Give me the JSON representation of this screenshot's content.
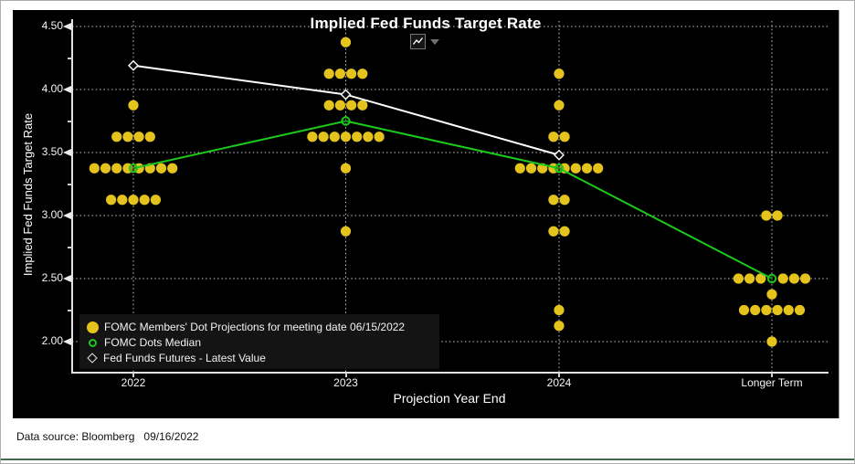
{
  "header": {
    "title": "Implied Fed Funds Target Rate"
  },
  "toolbar": {
    "icon": "line-chart-icon",
    "dropdown": "caret-down-icon"
  },
  "axes": {
    "y_label": "Implied Fed Funds Target Rate",
    "x_label": "Projection Year End",
    "y_ticks": [
      "4.50",
      "4.00",
      "3.50",
      "3.00",
      "2.50",
      "2.00"
    ],
    "y_minor_ticks": [
      4.25,
      3.75,
      3.25,
      2.75,
      2.25
    ],
    "x_ticks": [
      "2022",
      "2023",
      "2024",
      "Longer Term"
    ]
  },
  "legend": {
    "items": [
      {
        "marker": "yellow-dot",
        "label": "FOMC Members' Dot Projections for meeting date 06/15/2022"
      },
      {
        "marker": "green-ring",
        "label": "FOMC Dots Median"
      },
      {
        "marker": "white-diamond",
        "label": "Fed Funds Futures - Latest Value"
      }
    ]
  },
  "footer": {
    "text": "Data source: Bloomberg   09/16/2022"
  },
  "colors": {
    "background": "#000000",
    "dot": "#e4c31d",
    "median": "#1dc81d",
    "futures": "#ffffff",
    "grid": "#c8c8c8",
    "axis": "#e2e2e2",
    "bottom_rule": "#44684b"
  },
  "chart_data": {
    "type": "scatter",
    "title": "Implied Fed Funds Target Rate",
    "xlabel": "Projection Year End",
    "ylabel": "Implied Fed Funds Target Rate",
    "categories": [
      "2022",
      "2023",
      "2024",
      "Longer Term"
    ],
    "ylim": [
      1.75,
      4.55
    ],
    "y_gridlines": [
      4.5,
      4.0,
      3.5,
      3.0,
      2.5,
      2.0
    ],
    "grid": "dotted",
    "legend_position": "bottom-left",
    "dot_columns": [
      {
        "category": "2022",
        "rows": [
          {
            "value": 3.875,
            "count": 1
          },
          {
            "value": 3.625,
            "count": 4
          },
          {
            "value": 3.375,
            "count": 8
          },
          {
            "value": 3.125,
            "count": 5
          }
        ]
      },
      {
        "category": "2023",
        "rows": [
          {
            "value": 4.375,
            "count": 1
          },
          {
            "value": 4.125,
            "count": 4
          },
          {
            "value": 3.875,
            "count": 4
          },
          {
            "value": 3.625,
            "count": 7
          },
          {
            "value": 3.375,
            "count": 1
          },
          {
            "value": 2.875,
            "count": 1
          }
        ]
      },
      {
        "category": "2024",
        "rows": [
          {
            "value": 4.125,
            "count": 1
          },
          {
            "value": 3.875,
            "count": 1
          },
          {
            "value": 3.625,
            "count": 2
          },
          {
            "value": 3.375,
            "count": 8
          },
          {
            "value": 3.125,
            "count": 2
          },
          {
            "value": 2.875,
            "count": 2
          },
          {
            "value": 2.25,
            "count": 1
          },
          {
            "value": 2.125,
            "count": 1
          }
        ]
      },
      {
        "category": "Longer Term",
        "rows": [
          {
            "value": 3.0,
            "count": 2
          },
          {
            "value": 2.5,
            "count": 6,
            "gap_at_center": true
          },
          {
            "value": 2.375,
            "count": 1
          },
          {
            "value": 2.25,
            "count": 6
          },
          {
            "value": 2.0,
            "count": 1
          }
        ]
      }
    ],
    "series": [
      {
        "name": "FOMC Members' Dot Projections for meeting date 06/15/2022",
        "type": "dots"
      },
      {
        "name": "FOMC Dots Median",
        "type": "line",
        "values": [
          3.375,
          3.75,
          3.375,
          2.5
        ]
      },
      {
        "name": "Fed Funds Futures - Latest Value",
        "type": "line",
        "values": [
          4.19,
          3.96,
          3.48,
          null
        ]
      }
    ]
  }
}
